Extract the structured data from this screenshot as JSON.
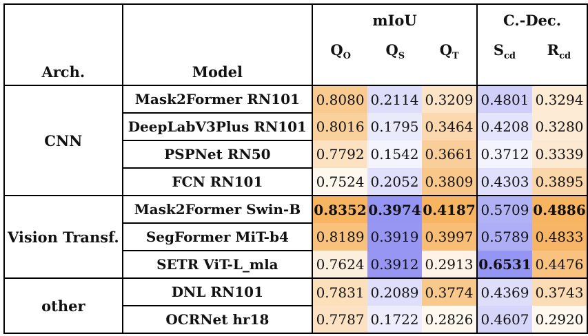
{
  "header": {
    "arch": "Arch.",
    "model": "Model",
    "group_miou": "mIoU",
    "group_cdec": "C.-Dec.",
    "cols": [
      {
        "base": "Q",
        "sub": "O"
      },
      {
        "base": "Q",
        "sub": "S"
      },
      {
        "base": "Q",
        "sub": "T"
      },
      {
        "base": "S",
        "sub": "cd"
      },
      {
        "base": "R",
        "sub": "cd"
      }
    ]
  },
  "groups": [
    {
      "arch": "CNN",
      "rows": [
        {
          "model": "Mask2Former RN101",
          "vals": [
            "0.8080",
            "0.2114",
            "0.3209",
            "0.4801",
            "0.3294"
          ]
        },
        {
          "model": "DeepLabV3Plus RN101",
          "vals": [
            "0.8016",
            "0.1795",
            "0.3464",
            "0.4208",
            "0.3280"
          ]
        },
        {
          "model": "PSPNet RN50",
          "vals": [
            "0.7792",
            "0.1542",
            "0.3661",
            "0.3712",
            "0.3339"
          ]
        },
        {
          "model": "FCN RN101",
          "vals": [
            "0.7524",
            "0.2052",
            "0.3809",
            "0.4303",
            "0.3895"
          ]
        }
      ]
    },
    {
      "arch": "Vision Transf.",
      "rows": [
        {
          "model": "Mask2Former Swin-B",
          "vals": [
            "0.8352",
            "0.3974",
            "0.4187",
            "0.5709",
            "0.4886"
          ]
        },
        {
          "model": "SegFormer MiT-b4",
          "vals": [
            "0.8189",
            "0.3919",
            "0.3997",
            "0.5789",
            "0.4833"
          ]
        },
        {
          "model": "SETR ViT-L_mla",
          "vals": [
            "0.7624",
            "0.3912",
            "0.2913",
            "0.6531",
            "0.4476"
          ]
        }
      ]
    },
    {
      "arch": "other",
      "rows": [
        {
          "model": "DNL RN101",
          "vals": [
            "0.7831",
            "0.2089",
            "0.3774",
            "0.4369",
            "0.3743"
          ]
        },
        {
          "model": "OCRNet hr18",
          "vals": [
            "0.7787",
            "0.1722",
            "0.2826",
            "0.4607",
            "0.2920"
          ]
        }
      ]
    }
  ],
  "bold_cells": [
    [
      4,
      0
    ],
    [
      4,
      1
    ],
    [
      4,
      2
    ],
    [
      4,
      4
    ],
    [
      6,
      3
    ]
  ],
  "colors": {
    "orange": "#f5a23a",
    "blue": "#7a7af0",
    "border": "#000000"
  }
}
